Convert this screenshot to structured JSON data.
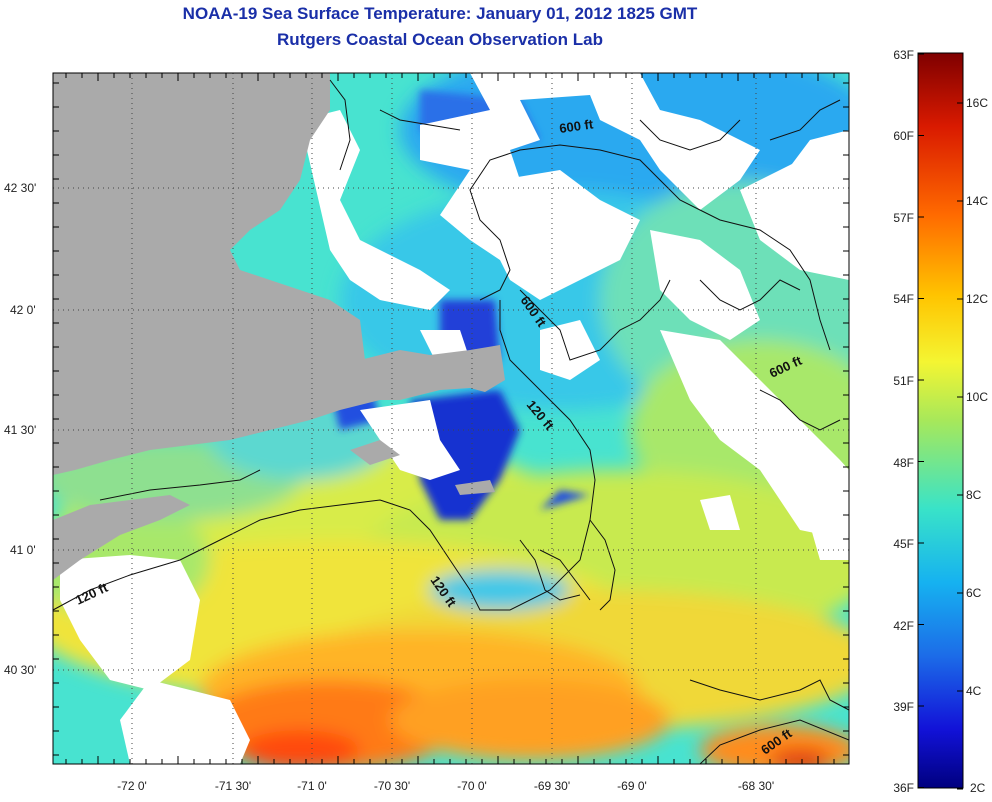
{
  "title": "NOAA-19 Sea Surface Temperature:  January 01, 2012 1825 GMT",
  "subtitle": "Rutgers Coastal Ocean Observation Lab",
  "longitude_ticks": [
    "-72 0'",
    "-71 30'",
    "-71 0'",
    "-70 30'",
    "-70 0'",
    "-69 30'",
    "-69 0'",
    "-68 30'"
  ],
  "latitude_ticks": [
    "42 30'",
    "42 0'",
    "41 30'",
    "41 0'",
    "40 30'"
  ],
  "contour_labels": [
    "600 ft",
    "600 ft",
    "600 ft",
    "120 ft",
    "120 ft",
    "120 ft",
    "600 ft"
  ],
  "colorbar": {
    "fahrenheit_labels": [
      "63F",
      "60F",
      "57F",
      "54F",
      "51F",
      "48F",
      "45F",
      "42F",
      "39F",
      "36F"
    ],
    "celsius_labels": [
      "16C",
      "14C",
      "12C",
      "10C",
      "8C",
      "6C",
      "4C",
      "2C"
    ],
    "colors": [
      "#7f0000",
      "#d91a00",
      "#ff6a00",
      "#ffc400",
      "#f4f532",
      "#a7e85a",
      "#39e3c8",
      "#16b2f0",
      "#1c6ce8",
      "#1212d8",
      "#00007f"
    ]
  },
  "map_colors": {
    "land": "#aaaaaa",
    "cloud": "#ffffff",
    "cold": "#1530d0",
    "cool": "#2aa9f0",
    "mid": "#48e3d0",
    "mild": "#a8e86a",
    "warm": "#e8ee3a",
    "hot": "#ff9a1a",
    "hotter": "#ff5a10"
  }
}
